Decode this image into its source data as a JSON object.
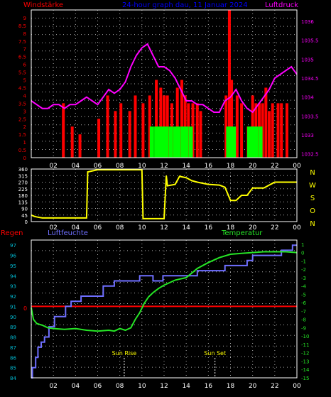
{
  "title": "24-hour graph dau, 11 Januar 2024",
  "colors": {
    "red": "#ff0000",
    "magenta": "#ff00ff",
    "blue": "#0000ff",
    "yellow": "#ffff00",
    "green": "#00ff00",
    "frame": "#ffffff",
    "grid": "#aaaaaa",
    "humidity": "#6f6fff",
    "temperature": "#26e626",
    "rainline": "#ff0000",
    "cyan_text": "#00bcd4"
  },
  "chart_data": [
    {
      "id": "wind",
      "type": "bar+line",
      "left_label": "Windstärke",
      "right_label": "Luftdruck",
      "x_ticks": [
        "02",
        "04",
        "06",
        "08",
        "10",
        "12",
        "14",
        "16",
        "18",
        "20",
        "22",
        "00"
      ],
      "xlim": [
        0,
        24
      ],
      "y_left_ticks": [
        "0",
        "0.5",
        "1",
        "1.5",
        "2",
        "2.5",
        "3",
        "3.5",
        "4",
        "4.5",
        "5",
        "5.5",
        "6",
        "6.5",
        "7",
        "7.5",
        "8",
        "8.5",
        "9"
      ],
      "ylim_left": [
        0,
        9.5
      ],
      "y_right_ticks": [
        "1032.5",
        "1033",
        "1033.5",
        "1034",
        "1034.5",
        "1035",
        "1035.5",
        "1036"
      ],
      "ylim_right": [
        1032.4,
        1036.3
      ],
      "series": [
        {
          "name": "Luftdruck",
          "x": [
            0,
            0.5,
            1,
            1.5,
            2,
            2.5,
            3,
            3.5,
            4,
            4.5,
            5,
            5.5,
            6,
            6.5,
            7,
            7.5,
            8,
            8.5,
            9,
            9.5,
            10,
            10.5,
            11,
            11.5,
            12,
            12.5,
            13,
            13.5,
            14,
            14.5,
            15,
            15.5,
            16,
            16.5,
            17,
            17.5,
            18,
            18.5,
            19,
            19.5,
            20,
            20.5,
            21,
            21.5,
            22,
            22.5,
            23,
            23.5,
            24
          ],
          "values": [
            1033.9,
            1033.8,
            1033.7,
            1033.7,
            1033.8,
            1033.8,
            1033.7,
            1033.8,
            1033.8,
            1033.9,
            1034.0,
            1033.9,
            1033.8,
            1034.0,
            1034.2,
            1034.1,
            1034.2,
            1034.4,
            1034.8,
            1035.1,
            1035.3,
            1035.4,
            1035.1,
            1034.8,
            1034.8,
            1034.7,
            1034.5,
            1034.2,
            1033.9,
            1033.9,
            1033.8,
            1033.8,
            1033.7,
            1033.6,
            1033.6,
            1033.9,
            1034.0,
            1034.2,
            1033.9,
            1033.7,
            1033.6,
            1033.8,
            1034.0,
            1034.2,
            1034.5,
            1034.6,
            1034.7,
            1034.8,
            1034.6
          ]
        },
        {
          "name": "Windstärke (Mittel)",
          "x": [
            3.5,
            6.2,
            7.9,
            8.6,
            8.9,
            10.0,
            10.9,
            11.3,
            11.6,
            11.9,
            12.2,
            12.6,
            13.0,
            13.3,
            13.7,
            14.0,
            14.4,
            14.8,
            17.8,
            18.0,
            18.3,
            19.3,
            19.7,
            20.0,
            20.3,
            20.7,
            21.0,
            21.5,
            21.8,
            22.5,
            23.0
          ],
          "values": [
            0,
            0,
            0,
            0,
            0,
            0,
            2,
            2,
            2,
            2,
            2,
            2,
            2,
            2,
            2,
            2,
            2,
            0,
            2,
            2,
            2,
            0,
            2,
            2,
            2,
            2,
            0,
            0,
            0,
            0,
            0
          ]
        },
        {
          "name": "Windstärke (Böen)",
          "x": [
            2.9,
            3.7,
            4.4,
            6.1,
            6.9,
            7.6,
            8.1,
            8.9,
            9.4,
            10.1,
            10.7,
            11.3,
            11.7,
            12.0,
            12.3,
            12.7,
            13.2,
            13.6,
            13.9,
            14.2,
            14.6,
            15.0,
            15.3,
            17.6,
            17.9,
            18.1,
            18.6,
            19.0,
            19.6,
            20.0,
            20.3,
            20.6,
            20.9,
            21.2,
            21.5,
            21.8,
            22.3,
            22.6,
            23.1
          ],
          "values": [
            3.5,
            2,
            1.5,
            2.5,
            4,
            3,
            3.5,
            3,
            4,
            3.5,
            4,
            5,
            4.5,
            4,
            4,
            3.5,
            4.5,
            5,
            4,
            3.5,
            3.5,
            3.5,
            3,
            4,
            9.5,
            5,
            4,
            3.5,
            2,
            4,
            3.5,
            3.5,
            3.5,
            4.5,
            3,
            3.5,
            3.5,
            3.5,
            3.5
          ]
        }
      ]
    },
    {
      "id": "direction",
      "type": "line",
      "y_left_ticks": [
        "0",
        "45",
        "90",
        "135",
        "180",
        "225",
        "270",
        "315",
        "360"
      ],
      "ylim": [
        0,
        360
      ],
      "right_compass": [
        "N",
        "W",
        "S",
        "O",
        "N"
      ],
      "series": [
        {
          "name": "Windrichtung",
          "x": [
            0,
            0.3,
            0.6,
            1,
            2,
            3,
            4,
            5,
            5.1,
            6,
            7,
            8,
            9,
            10,
            10.1,
            11,
            12,
            12.2,
            12.3,
            13,
            13.4,
            14,
            14.5,
            15,
            16,
            17,
            17.5,
            18,
            18.5,
            19,
            19.5,
            20,
            21,
            22,
            23,
            24
          ],
          "values": [
            45,
            35,
            30,
            25,
            25,
            25,
            25,
            25,
            340,
            355,
            355,
            355,
            355,
            355,
            20,
            20,
            20,
            315,
            245,
            255,
            310,
            300,
            280,
            270,
            255,
            250,
            235,
            145,
            145,
            180,
            180,
            230,
            230,
            270,
            270,
            270
          ]
        }
      ]
    },
    {
      "id": "humidity_temperature",
      "type": "line",
      "left_label": "Regen",
      "mid_label": "Luftfeuchte",
      "right_label": "Temperatur",
      "rain_value_label": "0",
      "y_left_ticks": [
        "84",
        "85",
        "86",
        "87",
        "88",
        "89",
        "90",
        "91",
        "92",
        "93",
        "94",
        "95",
        "96",
        "97"
      ],
      "ylim_left": [
        84,
        97.5
      ],
      "y_right_ticks": [
        "1",
        "0",
        "-1",
        "-2",
        "-3",
        "-4",
        "-5",
        "-6",
        "-7",
        "-8",
        "-9",
        "-10",
        "-11",
        "-12",
        "-13",
        "-14",
        "-15"
      ],
      "ylim_right": [
        -15,
        1.5
      ],
      "sun_rise_label": "Sun Rise",
      "sun_rise_x": 8.4,
      "sun_set_label": "Sun Set",
      "sun_set_x": 16.6,
      "series": [
        {
          "name": "Luftfeuchte",
          "x": [
            0,
            0.1,
            0.4,
            0.6,
            0.9,
            1.2,
            1.6,
            2.1,
            2.8,
            3.1,
            3.6,
            4.0,
            4.5,
            5.0,
            6.5,
            7.5,
            8.2,
            9.0,
            9.8,
            10.5,
            11.0,
            11.5,
            11.9,
            12.6,
            13.2,
            15.0,
            16.2,
            17.5,
            18.5,
            19.5,
            20.0,
            21.0,
            22.0,
            22.6,
            23.0,
            23.6,
            24
          ],
          "values": [
            84,
            85,
            86,
            87,
            87.5,
            88,
            89,
            90,
            90,
            91,
            91.5,
            91.5,
            92,
            92,
            93,
            93.5,
            93.5,
            93.5,
            94,
            94,
            93.5,
            93.5,
            94,
            94,
            94,
            94.5,
            94.5,
            95,
            95,
            95.5,
            96,
            96,
            96,
            96.5,
            96.5,
            97,
            97
          ]
        },
        {
          "name": "Temperatur",
          "x": [
            0,
            0.2,
            0.5,
            1,
            1.5,
            2,
            3,
            4,
            5,
            6,
            7,
            7.5,
            8,
            8.5,
            9,
            9.4,
            9.8,
            10.2,
            10.6,
            11,
            11.5,
            12,
            12.5,
            13,
            14,
            15,
            16,
            17,
            18,
            19,
            20,
            21,
            22,
            23,
            24
          ],
          "values": [
            -6.6,
            -8,
            -8.5,
            -8.7,
            -9,
            -9.1,
            -9.2,
            -9.1,
            -9.3,
            -9.4,
            -9.3,
            -9.4,
            -9.1,
            -9.3,
            -9,
            -8,
            -7.2,
            -6.1,
            -5.3,
            -4.8,
            -4.3,
            -3.9,
            -3.6,
            -3.3,
            -3.0,
            -1.9,
            -1.2,
            -0.6,
            -0.2,
            -0.1,
            0.0,
            0.1,
            0.1,
            0.1,
            0.0
          ]
        }
      ]
    }
  ]
}
